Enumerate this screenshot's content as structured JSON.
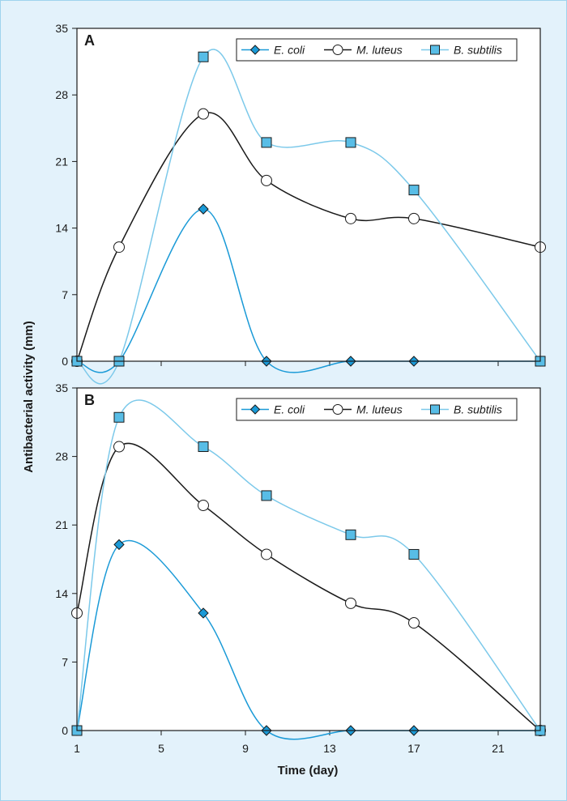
{
  "figure": {
    "background": "#e3f2fb",
    "ylabel": "Antibacterial activity (mm)",
    "xlabel": "Time (day)"
  },
  "series_styles": {
    "E. coli": {
      "color": "#1a9ad7",
      "marker": "diamond",
      "fill": "#1a9ad7"
    },
    "M. luteus": {
      "color": "#1a1a1a",
      "marker": "circle",
      "fill": "#ffffff"
    },
    "B. subtilis": {
      "color": "#7cc9ea",
      "marker": "square",
      "fill": "#58bde6"
    }
  },
  "chart_data": [
    {
      "type": "line",
      "panel_label": "A",
      "ylim": [
        0,
        35
      ],
      "yticks": [
        0,
        7,
        14,
        21,
        28,
        35
      ],
      "xlim": [
        1,
        23
      ],
      "xticks": [
        1,
        5,
        9,
        13,
        17,
        21
      ],
      "legend_position": "top-right",
      "series": [
        {
          "name": "E. coli",
          "x": [
            1,
            3,
            7,
            10,
            14,
            17,
            23
          ],
          "values": [
            0,
            0,
            16,
            0,
            0,
            0,
            0
          ]
        },
        {
          "name": "M. luteus",
          "x": [
            1,
            3,
            7,
            10,
            14,
            17,
            23
          ],
          "values": [
            0,
            12,
            26,
            19,
            15,
            15,
            12
          ]
        },
        {
          "name": "B. subtilis",
          "x": [
            1,
            3,
            7,
            10,
            14,
            17,
            23
          ],
          "values": [
            0,
            0,
            32,
            23,
            23,
            18,
            0
          ]
        }
      ]
    },
    {
      "type": "line",
      "panel_label": "B",
      "ylim": [
        0,
        35
      ],
      "yticks": [
        0,
        7,
        14,
        21,
        28,
        35
      ],
      "xlim": [
        1,
        23
      ],
      "xticks": [
        1,
        5,
        9,
        13,
        17,
        21
      ],
      "legend_position": "top-right",
      "series": [
        {
          "name": "E. coli",
          "x": [
            1,
            3,
            7,
            10,
            14,
            17,
            23
          ],
          "values": [
            0,
            19,
            12,
            0,
            0,
            0,
            0
          ]
        },
        {
          "name": "M. luteus",
          "x": [
            1,
            3,
            7,
            10,
            14,
            17,
            23
          ],
          "values": [
            12,
            29,
            23,
            18,
            13,
            11,
            0
          ]
        },
        {
          "name": "B. subtilis",
          "x": [
            1,
            3,
            7,
            10,
            14,
            17,
            23
          ],
          "values": [
            0,
            32,
            29,
            24,
            20,
            18,
            0
          ]
        }
      ]
    }
  ]
}
